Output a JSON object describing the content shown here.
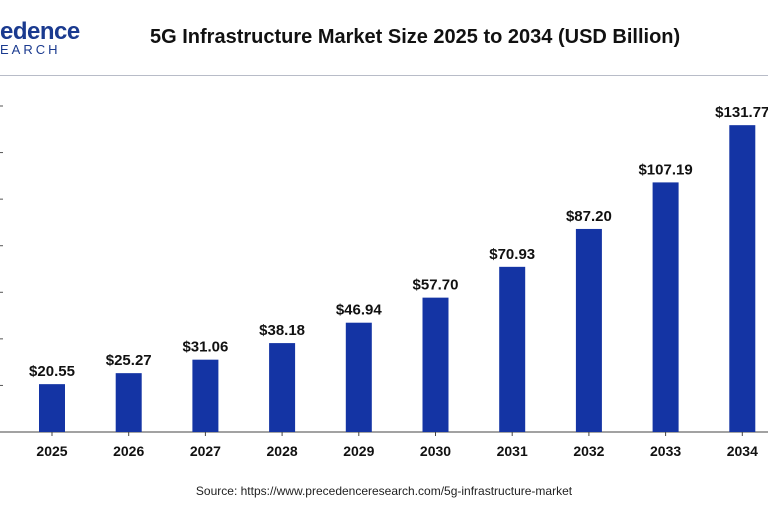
{
  "brand": {
    "logo_top": "edence",
    "logo_bottom": "EARCH"
  },
  "chart_data": {
    "type": "bar",
    "title": "5G Infrastructure Market Size 2025 to 2034 (USD Billion)",
    "categories": [
      "2025",
      "2026",
      "2027",
      "2028",
      "2029",
      "2030",
      "2031",
      "2032",
      "2033",
      "2034"
    ],
    "values": [
      20.55,
      25.27,
      31.06,
      38.18,
      46.94,
      57.7,
      70.93,
      87.2,
      107.19,
      131.77
    ],
    "data_labels": [
      "$20.55",
      "$25.27",
      "$31.06",
      "$38.18",
      "$46.94",
      "$57.70",
      "$70.93",
      "$87.20",
      "$107.19",
      "$131.77"
    ],
    "xlabel": "",
    "ylabel": "",
    "ylim": [
      0,
      140
    ],
    "grid": false,
    "bar_color": "#1434a4"
  },
  "source": "Source: https://www.precedenceresearch.com/5g-infrastructure-market"
}
